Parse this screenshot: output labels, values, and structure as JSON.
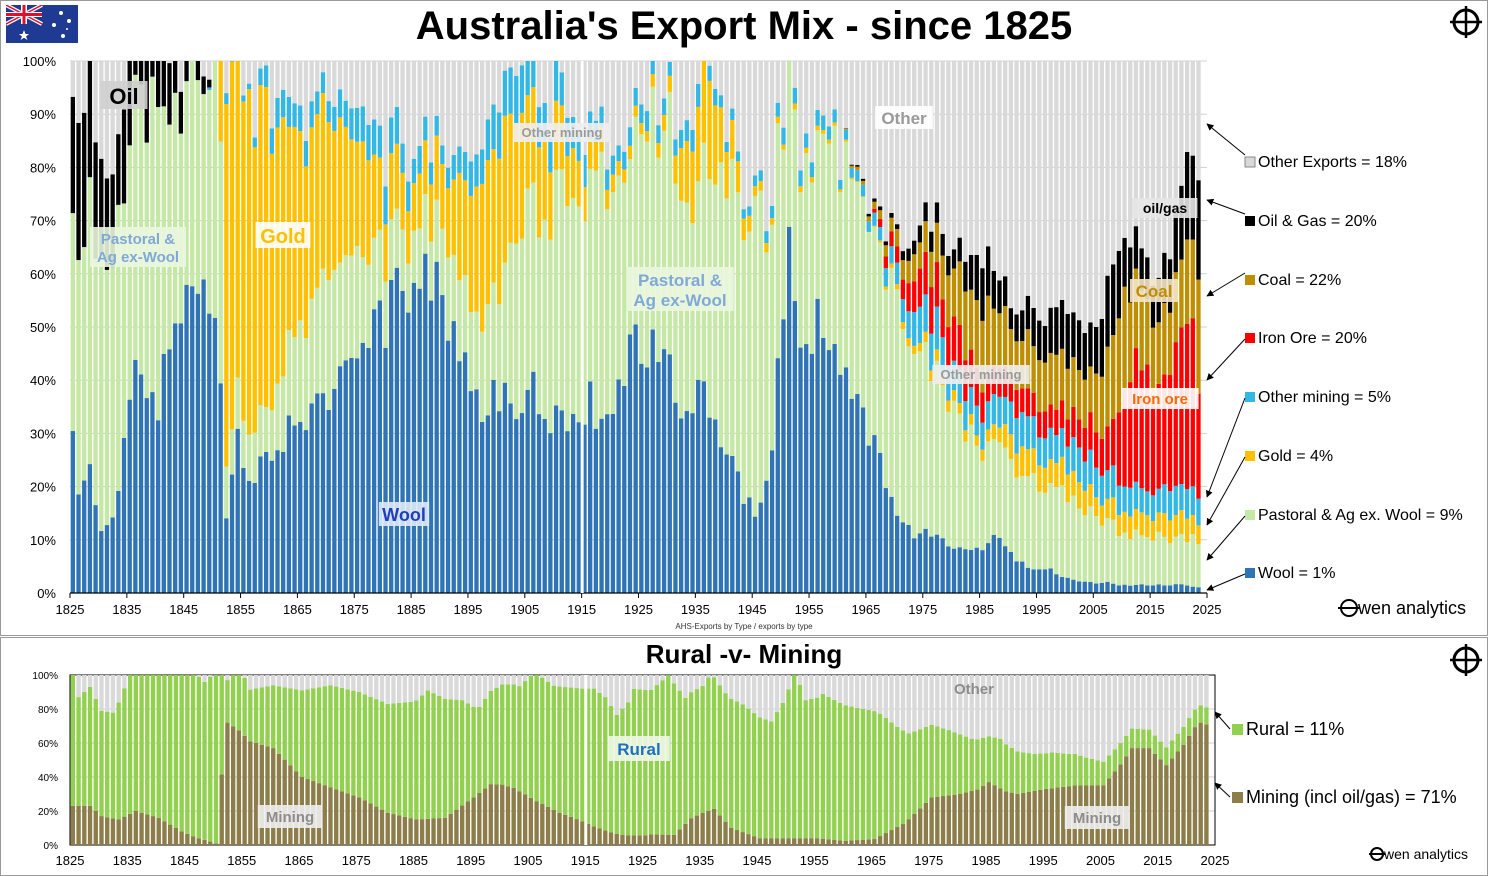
{
  "title": "Australia's Export Mix - since 1825",
  "subtitle": "Rural -v- Mining",
  "source_note": "AHS-Exports by Type / exports by type",
  "brand": "wen analytics",
  "chart_data": [
    {
      "type": "bar",
      "stacked": true,
      "title": "Australia's Export Mix - since 1825",
      "x_range": [
        1825,
        2023
      ],
      "x_ticks": [
        "1825",
        "1835",
        "1845",
        "1855",
        "1865",
        "1875",
        "1885",
        "1895",
        "1905",
        "1915",
        "1925",
        "1935",
        "1945",
        "1955",
        "1965",
        "1975",
        "1985",
        "1995",
        "2005",
        "2015",
        "2025"
      ],
      "y_ticks": [
        "0%",
        "10%",
        "20%",
        "30%",
        "40%",
        "50%",
        "60%",
        "70%",
        "80%",
        "90%",
        "100%"
      ],
      "ylim": [
        0,
        100
      ],
      "grid": true,
      "series_order": [
        "Wool",
        "Pastoral & Ag ex. Wool",
        "Gold",
        "Other mining",
        "Iron Ore",
        "Coal",
        "Oil & Gas",
        "Other Exports"
      ],
      "colors": {
        "Wool": "#2f75b5",
        "Pastoral & Ag ex. Wool": "#c6e8a6",
        "Gold": "#ffc000",
        "Other mining": "#33b8e6",
        "Iron Ore": "#ff0000",
        "Coal": "#bf8f00",
        "Oil & Gas": "#000000",
        "Other Exports": "#d9d9d9"
      },
      "anchors": {
        "Wool": [
          [
            1825,
            32
          ],
          [
            1826,
            18
          ],
          [
            1828,
            22
          ],
          [
            1830,
            12
          ],
          [
            1832,
            13
          ],
          [
            1834,
            27
          ],
          [
            1836,
            44
          ],
          [
            1838,
            41
          ],
          [
            1840,
            35
          ],
          [
            1842,
            47
          ],
          [
            1844,
            55
          ],
          [
            1846,
            58
          ],
          [
            1848,
            55
          ],
          [
            1850,
            55
          ],
          [
            1851,
            44
          ],
          [
            1852,
            15
          ],
          [
            1854,
            30
          ],
          [
            1856,
            22
          ],
          [
            1860,
            27
          ],
          [
            1865,
            33
          ],
          [
            1870,
            38
          ],
          [
            1875,
            42
          ],
          [
            1880,
            52
          ],
          [
            1884,
            58
          ],
          [
            1887,
            64
          ],
          [
            1890,
            56
          ],
          [
            1893,
            48
          ],
          [
            1896,
            35
          ],
          [
            1900,
            37
          ],
          [
            1903,
            32
          ],
          [
            1906,
            39
          ],
          [
            1909,
            34
          ],
          [
            1914,
            35
          ],
          [
            1916,
            37
          ],
          [
            1920,
            30
          ],
          [
            1923,
            50
          ],
          [
            1926,
            45
          ],
          [
            1929,
            50
          ],
          [
            1932,
            32
          ],
          [
            1936,
            38
          ],
          [
            1939,
            28
          ],
          [
            1942,
            22
          ],
          [
            1945,
            13
          ],
          [
            1947,
            20
          ],
          [
            1949,
            40
          ],
          [
            1951,
            65
          ],
          [
            1953,
            48
          ],
          [
            1956,
            52
          ],
          [
            1959,
            44
          ],
          [
            1962,
            37
          ],
          [
            1966,
            28
          ],
          [
            1969,
            18
          ],
          [
            1971,
            12
          ],
          [
            1974,
            11
          ],
          [
            1978,
            10
          ],
          [
            1982,
            8
          ],
          [
            1985,
            9
          ],
          [
            1987,
            11
          ],
          [
            1990,
            7
          ],
          [
            1993,
            5
          ],
          [
            1996,
            5
          ],
          [
            1999,
            3
          ],
          [
            2002,
            2
          ],
          [
            2006,
            2
          ],
          [
            2010,
            1.5
          ],
          [
            2015,
            1.5
          ],
          [
            2020,
            1.5
          ],
          [
            2023,
            1
          ]
        ],
        "Pastoral & Ag ex. Wool": [
          [
            1825,
            45
          ],
          [
            1830,
            50
          ],
          [
            1835,
            48
          ],
          [
            1840,
            55
          ],
          [
            1844,
            40
          ],
          [
            1848,
            38
          ],
          [
            1851,
            50
          ],
          [
            1852,
            10
          ],
          [
            1855,
            8
          ],
          [
            1860,
            10
          ],
          [
            1865,
            18
          ],
          [
            1870,
            22
          ],
          [
            1875,
            20
          ],
          [
            1880,
            12
          ],
          [
            1885,
            10
          ],
          [
            1890,
            14
          ],
          [
            1895,
            14
          ],
          [
            1900,
            22
          ],
          [
            1905,
            35
          ],
          [
            1910,
            40
          ],
          [
            1914,
            43
          ],
          [
            1918,
            45
          ],
          [
            1922,
            35
          ],
          [
            1926,
            40
          ],
          [
            1930,
            45
          ],
          [
            1935,
            38
          ],
          [
            1940,
            50
          ],
          [
            1945,
            58
          ],
          [
            1950,
            35
          ],
          [
            1955,
            32
          ],
          [
            1960,
            38
          ],
          [
            1965,
            45
          ],
          [
            1970,
            40
          ],
          [
            1975,
            32
          ],
          [
            1980,
            26
          ],
          [
            1985,
            18
          ],
          [
            1990,
            18
          ],
          [
            1995,
            16
          ],
          [
            2000,
            16
          ],
          [
            2005,
            12
          ],
          [
            2010,
            10
          ],
          [
            2015,
            9
          ],
          [
            2020,
            9
          ],
          [
            2023,
            9
          ]
        ],
        "Gold": [
          [
            1825,
            0
          ],
          [
            1850,
            0
          ],
          [
            1851,
            40
          ],
          [
            1852,
            70
          ],
          [
            1854,
            66
          ],
          [
            1856,
            60
          ],
          [
            1860,
            52
          ],
          [
            1865,
            35
          ],
          [
            1870,
            30
          ],
          [
            1875,
            22
          ],
          [
            1880,
            12
          ],
          [
            1885,
            10
          ],
          [
            1890,
            12
          ],
          [
            1894,
            20
          ],
          [
            1898,
            28
          ],
          [
            1902,
            25
          ],
          [
            1906,
            18
          ],
          [
            1910,
            12
          ],
          [
            1914,
            8
          ],
          [
            1916,
            6
          ],
          [
            1920,
            3
          ],
          [
            1925,
            2
          ],
          [
            1930,
            3
          ],
          [
            1933,
            12
          ],
          [
            1937,
            18
          ],
          [
            1940,
            8
          ],
          [
            1945,
            2
          ],
          [
            1950,
            1
          ],
          [
            1955,
            1
          ],
          [
            1965,
            0
          ],
          [
            1970,
            1
          ],
          [
            1975,
            2
          ],
          [
            1980,
            2
          ],
          [
            1985,
            2
          ],
          [
            1988,
            3
          ],
          [
            1990,
            5
          ],
          [
            1995,
            5
          ],
          [
            2000,
            5
          ],
          [
            2005,
            4
          ],
          [
            2010,
            4
          ],
          [
            2015,
            4
          ],
          [
            2020,
            4
          ],
          [
            2023,
            4
          ]
        ],
        "Other mining": [
          [
            1825,
            0
          ],
          [
            1848,
            0
          ],
          [
            1850,
            1
          ],
          [
            1852,
            2
          ],
          [
            1856,
            1
          ],
          [
            1860,
            5
          ],
          [
            1865,
            5
          ],
          [
            1870,
            4
          ],
          [
            1875,
            6
          ],
          [
            1880,
            7
          ],
          [
            1885,
            5
          ],
          [
            1890,
            4
          ],
          [
            1895,
            6
          ],
          [
            1900,
            9
          ],
          [
            1905,
            8
          ],
          [
            1910,
            7
          ],
          [
            1914,
            6
          ],
          [
            1918,
            4
          ],
          [
            1922,
            3
          ],
          [
            1926,
            4
          ],
          [
            1930,
            3
          ],
          [
            1935,
            4
          ],
          [
            1940,
            2
          ],
          [
            1945,
            2
          ],
          [
            1950,
            3
          ],
          [
            1955,
            3
          ],
          [
            1960,
            2
          ],
          [
            1965,
            2
          ],
          [
            1970,
            4
          ],
          [
            1975,
            8
          ],
          [
            1980,
            6
          ],
          [
            1985,
            5
          ],
          [
            1990,
            6
          ],
          [
            1995,
            6
          ],
          [
            2000,
            6
          ],
          [
            2005,
            6
          ],
          [
            2010,
            5
          ],
          [
            2015,
            5
          ],
          [
            2020,
            5
          ],
          [
            2023,
            5
          ]
        ],
        "Iron Ore": [
          [
            1825,
            0
          ],
          [
            1965,
            0
          ],
          [
            1968,
            2
          ],
          [
            1971,
            4
          ],
          [
            1975,
            8
          ],
          [
            1980,
            8
          ],
          [
            1985,
            6
          ],
          [
            1990,
            5
          ],
          [
            1995,
            5
          ],
          [
            2000,
            5
          ],
          [
            2005,
            7
          ],
          [
            2008,
            8
          ],
          [
            2010,
            20
          ],
          [
            2013,
            25
          ],
          [
            2016,
            18
          ],
          [
            2019,
            25
          ],
          [
            2021,
            30
          ],
          [
            2022,
            30
          ],
          [
            2023,
            20
          ]
        ],
        "Coal": [
          [
            1825,
            0
          ],
          [
            1960,
            0
          ],
          [
            1965,
            1
          ],
          [
            1970,
            3
          ],
          [
            1975,
            6
          ],
          [
            1980,
            10
          ],
          [
            1985,
            14
          ],
          [
            1990,
            10
          ],
          [
            1995,
            10
          ],
          [
            2000,
            9
          ],
          [
            2005,
            10
          ],
          [
            2008,
            16
          ],
          [
            2010,
            18
          ],
          [
            2013,
            15
          ],
          [
            2016,
            12
          ],
          [
            2019,
            13
          ],
          [
            2022,
            15
          ],
          [
            2023,
            22
          ]
        ],
        "Oil & Gas": [
          [
            1825,
            23
          ],
          [
            1828,
            23
          ],
          [
            1830,
            17
          ],
          [
            1833,
            15
          ],
          [
            1836,
            20
          ],
          [
            1838,
            18
          ],
          [
            1840,
            16
          ],
          [
            1842,
            12
          ],
          [
            1844,
            8
          ],
          [
            1846,
            5
          ],
          [
            1848,
            3
          ],
          [
            1850,
            0
          ],
          [
            1960,
            0
          ],
          [
            1970,
            1
          ],
          [
            1975,
            4
          ],
          [
            1980,
            4
          ],
          [
            1983,
            6
          ],
          [
            1985,
            10
          ],
          [
            1988,
            6
          ],
          [
            1990,
            4
          ],
          [
            1995,
            7
          ],
          [
            2000,
            10
          ],
          [
            2005,
            8
          ],
          [
            2008,
            14
          ],
          [
            2010,
            10
          ],
          [
            2013,
            8
          ],
          [
            2016,
            8
          ],
          [
            2019,
            12
          ],
          [
            2022,
            18
          ],
          [
            2023,
            20
          ]
        ],
        "Other Exports": [
          [
            1825,
            0
          ]
        ]
      },
      "labels_on_chart": [
        "Oil",
        "Gold",
        "Pastoral & Ag ex-Wool",
        "Pastoral & Ag ex-Wool (2)",
        "Other mining",
        "Other",
        "Wool",
        "oil/gas",
        "Coal",
        "Iron ore",
        "Other mining (2)"
      ],
      "label_text": {
        "oil": "Oil",
        "gold": "Gold",
        "pastoral1": "Pastoral & Ag ex-Wool",
        "pastoral2": "Pastoral & Ag ex-Wool",
        "other_mining1": "Other mining",
        "other_mining2": "Other mining",
        "other": "Other",
        "wool": "Wool",
        "oilgas": "oil/gas",
        "coal": "Coal",
        "ironore": "Iron ore"
      },
      "legend": [
        {
          "name": "Other Exports",
          "value": "18%",
          "text": "Other Exports  =  18%"
        },
        {
          "name": "Oil & Gas",
          "value": "20%",
          "text": "Oil & Gas  =  20%"
        },
        {
          "name": "Coal",
          "value": "22%",
          "text": "Coal  =  22%"
        },
        {
          "name": "Iron Ore",
          "value": "20%",
          "text": "Iron Ore  =  20%"
        },
        {
          "name": "Other mining",
          "value": "5%",
          "text": "Other mining  =  5%"
        },
        {
          "name": "Gold",
          "value": "4%",
          "text": "Gold  =  4%"
        },
        {
          "name": "Pastoral & Ag ex. Wool",
          "value": "9%",
          "text": "Pastoral & Ag ex. Wool  =  9%"
        },
        {
          "name": "Wool",
          "value": "1%",
          "text": "Wool  =  1%"
        }
      ],
      "legend_position": "right"
    },
    {
      "type": "bar",
      "stacked": true,
      "title": "Rural -v- Mining",
      "x_range": [
        1825,
        2023
      ],
      "x_ticks": [
        "1825",
        "1835",
        "1845",
        "1855",
        "1865",
        "1875",
        "1885",
        "1895",
        "1905",
        "1915",
        "1925",
        "1935",
        "1945",
        "1955",
        "1965",
        "1975",
        "1985",
        "1995",
        "2005",
        "2015",
        "2025"
      ],
      "y_ticks": [
        "0%",
        "20%",
        "40%",
        "60%",
        "80%",
        "100%"
      ],
      "ylim": [
        0,
        100
      ],
      "colors": {
        "Mining": "#8c7d4a",
        "Rural": "#92d050",
        "Other": "#d9d9d9"
      },
      "labels_on_chart": {
        "rural": "Rural",
        "mining1": "Mining",
        "mining2": "Mining",
        "other": "Other"
      },
      "legend": [
        {
          "name": "Rural",
          "value": "11%",
          "text": "Rural  =  11%"
        },
        {
          "name": "Mining (incl oil/gas)",
          "value": "71%",
          "text": "Mining (incl oil/gas) = 71%"
        }
      ],
      "legend_position": "right"
    }
  ]
}
